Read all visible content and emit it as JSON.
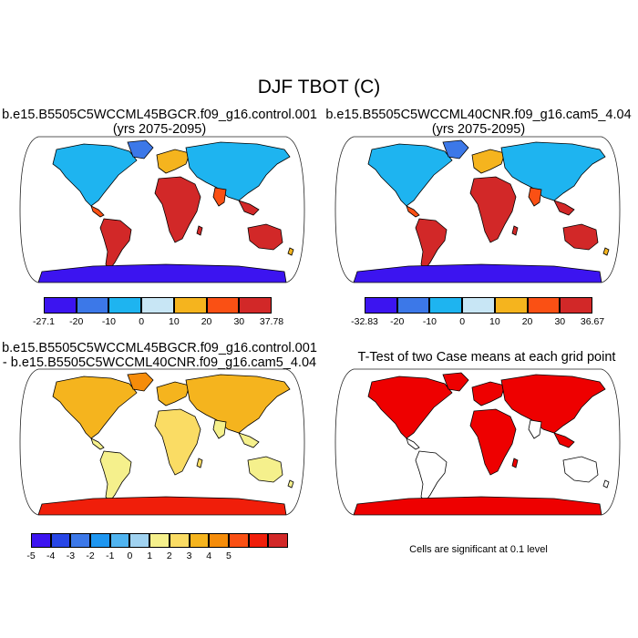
{
  "figure": {
    "title": "DJF TBOT (C)"
  },
  "panels": [
    {
      "id": "case1",
      "title_lines": [
        "b.e15.B5505C5WCCML45BGCR.f09_g16.control.001",
        "(yrs 2075-2095)"
      ],
      "colorbar": {
        "colors": [
          "#3c14f0",
          "#3c78e8",
          "#1eb4f0",
          "#c8e6f5",
          "#f5b41e",
          "#fa5014",
          "#d22828"
        ],
        "labels": [
          "-27.1",
          "-20",
          "-10",
          "0",
          "10",
          "20",
          "30",
          "37.78"
        ]
      }
    },
    {
      "id": "case2",
      "title_lines": [
        "b.e15.B5505C5WCCML40CNR.f09_g16.cam5_4.04",
        "(yrs 2075-2095)"
      ],
      "colorbar": {
        "colors": [
          "#3c14f0",
          "#3c78e8",
          "#1eb4f0",
          "#c8e6f5",
          "#f5b41e",
          "#fa5014",
          "#d22828"
        ],
        "labels": [
          "-32.83",
          "-20",
          "-10",
          "0",
          "10",
          "20",
          "30",
          "36.67"
        ]
      }
    },
    {
      "id": "difference",
      "title_lines": [
        "b.e15.B5505C5WCCML45BGCR.f09_g16.control.001",
        "- b.e15.B5505C5WCCML40CNR.f09_g16.cam5_4.04"
      ],
      "colorbar": {
        "colors": [
          "#3c14f0",
          "#2846e6",
          "#3c78e8",
          "#1e96f0",
          "#50b4f0",
          "#a0d2f0",
          "#f5f08c",
          "#fadc64",
          "#f5b41e",
          "#f58c0a",
          "#fa5014",
          "#f01e0a",
          "#d22828"
        ],
        "labels": [
          "-5",
          "-4",
          "-3",
          "-2",
          "-1",
          "0",
          "1",
          "2",
          "3",
          "4",
          "5"
        ]
      }
    },
    {
      "id": "ttest",
      "title_lines": [
        "T-Test of two Case means at each grid point"
      ],
      "note": "Cells are significant at 0.1 level"
    }
  ]
}
